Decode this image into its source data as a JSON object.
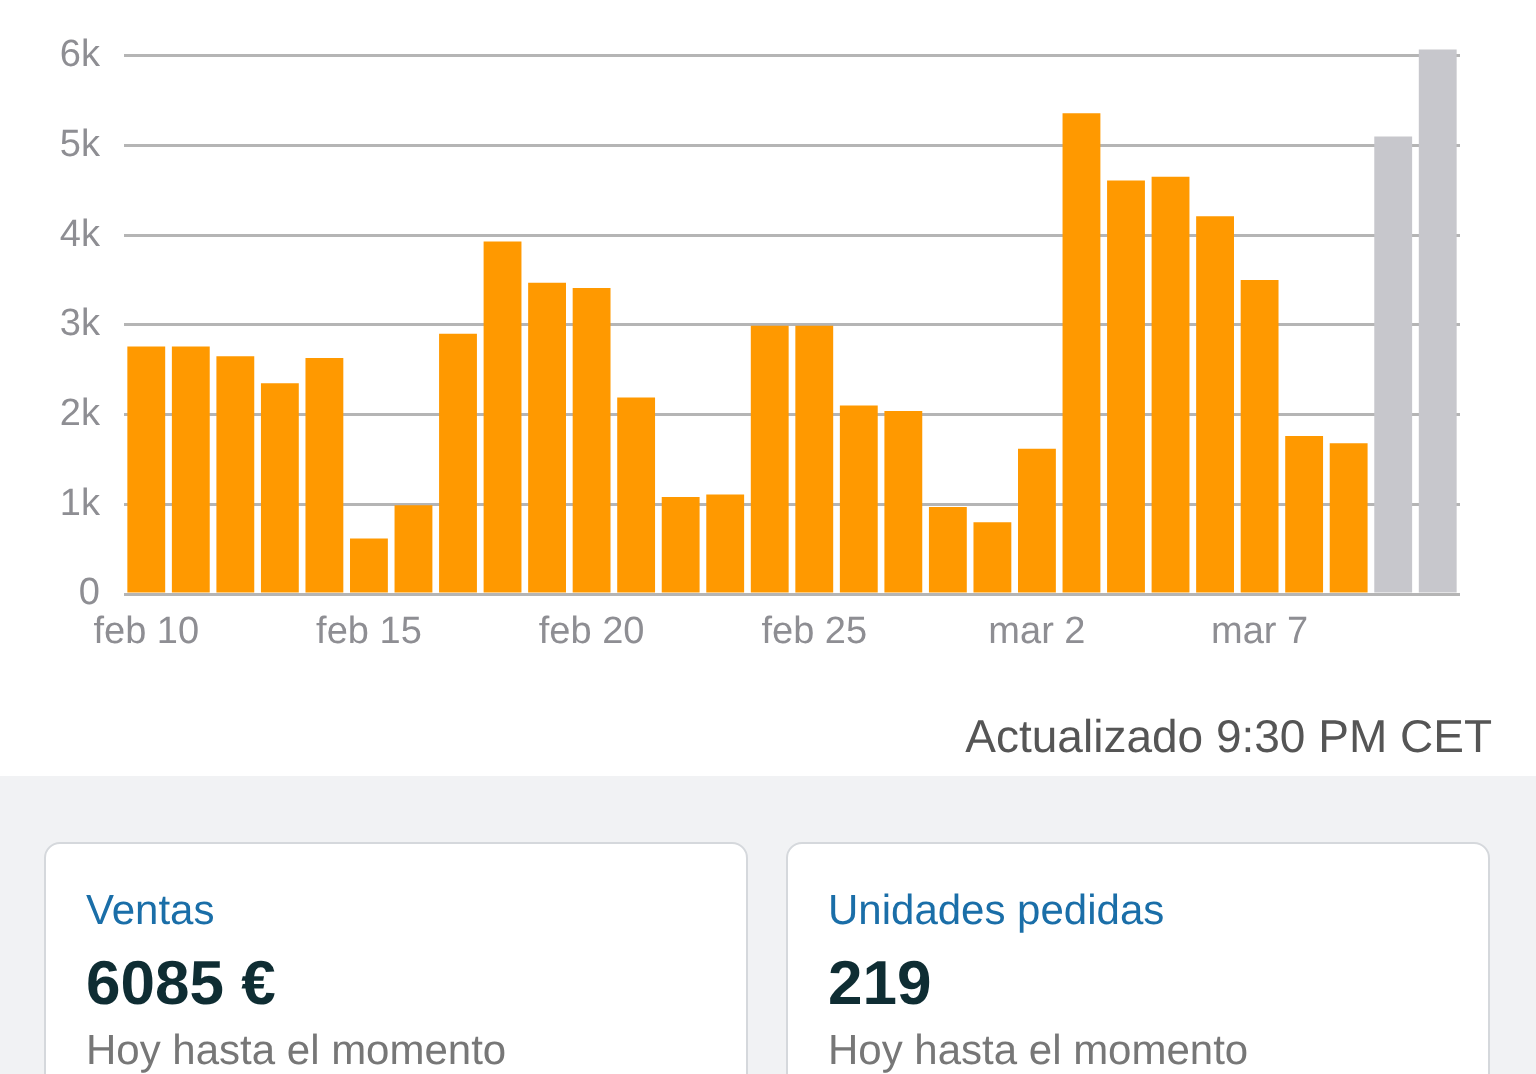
{
  "chart_data": {
    "type": "bar",
    "categories": [
      "feb 10",
      null,
      null,
      null,
      null,
      "feb 15",
      null,
      null,
      null,
      null,
      "feb 20",
      null,
      null,
      null,
      null,
      "feb 25",
      null,
      null,
      null,
      null,
      "mar 2",
      null,
      null,
      null,
      null,
      "mar 7",
      null,
      null,
      null,
      null
    ],
    "values": [
      2760,
      2760,
      2650,
      2350,
      2630,
      620,
      990,
      2900,
      3930,
      3470,
      3410,
      2190,
      1080,
      1110,
      2990,
      2990,
      2100,
      2040,
      970,
      800,
      1620,
      5360,
      4610,
      4650,
      4210,
      3500,
      1760,
      1680,
      5100,
      6070
    ],
    "colors": [
      "#ff9900",
      "#ff9900",
      "#ff9900",
      "#ff9900",
      "#ff9900",
      "#ff9900",
      "#ff9900",
      "#ff9900",
      "#ff9900",
      "#ff9900",
      "#ff9900",
      "#ff9900",
      "#ff9900",
      "#ff9900",
      "#ff9900",
      "#ff9900",
      "#ff9900",
      "#ff9900",
      "#ff9900",
      "#ff9900",
      "#ff9900",
      "#ff9900",
      "#ff9900",
      "#ff9900",
      "#ff9900",
      "#ff9900",
      "#ff9900",
      "#ff9900",
      "#c7c7cc",
      "#c7c7cc"
    ],
    "ylim": [
      0,
      6100
    ],
    "yticks": [
      0,
      {
        "value": 1000,
        "label": "1k"
      },
      {
        "value": 2000,
        "label": "2k"
      },
      {
        "value": 3000,
        "label": "3k"
      },
      {
        "value": 4000,
        "label": "4k"
      },
      {
        "value": 5000,
        "label": "5k"
      },
      {
        "value": 6000,
        "label": "6k"
      }
    ],
    "grid": "y",
    "legend": false,
    "annotations": [
      "Actualizado 9:30 PM CET",
      "Ventas",
      "6085 €",
      "Hoy hasta el momento",
      "Unidades pedidas",
      "219",
      "Hoy hasta el momento"
    ]
  }
}
